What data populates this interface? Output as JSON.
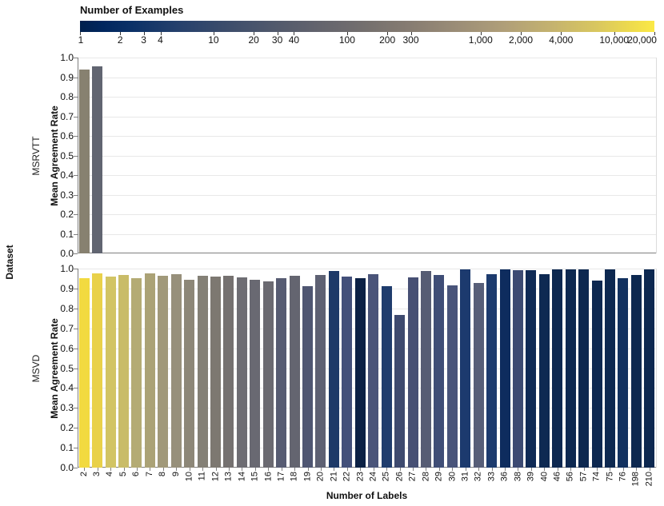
{
  "chart_data": {
    "type": "bar",
    "facet_row_label": "Dataset",
    "xlabel": "Number of Labels",
    "ylabel": "Mean Agreement Rate",
    "ylim": [
      0,
      1
    ],
    "grid": true,
    "y_tick_labels": [
      "1.0",
      "0.9",
      "0.8",
      "0.7",
      "0.6",
      "0.5",
      "0.4",
      "0.3",
      "0.2",
      "0.1",
      "0.0"
    ],
    "legend": {
      "title": "Number of Examples",
      "scale": "log",
      "domain": [
        1,
        20000
      ],
      "colormap": "cividis (dark navy to gray to yellow)",
      "ticks": [
        {
          "value": 1,
          "label": "1"
        },
        {
          "value": 2,
          "label": "2"
        },
        {
          "value": 3,
          "label": "3"
        },
        {
          "value": 4,
          "label": "4"
        },
        {
          "value": 10,
          "label": "10"
        },
        {
          "value": 20,
          "label": "20"
        },
        {
          "value": 30,
          "label": "30"
        },
        {
          "value": 40,
          "label": "40"
        },
        {
          "value": 100,
          "label": "100"
        },
        {
          "value": 200,
          "label": "200"
        },
        {
          "value": 300,
          "label": "300"
        },
        {
          "value": 1000,
          "label": "1,000"
        },
        {
          "value": 2000,
          "label": "2,000"
        },
        {
          "value": 4000,
          "label": "4,000"
        },
        {
          "value": 10000,
          "label": "10,000"
        },
        {
          "value": 20000,
          "label": "20,000"
        }
      ]
    },
    "categories": [
      "2",
      "3",
      "4",
      "5",
      "6",
      "7",
      "8",
      "9",
      "10",
      "11",
      "12",
      "13",
      "14",
      "15",
      "16",
      "17",
      "18",
      "19",
      "20",
      "21",
      "22",
      "23",
      "24",
      "25",
      "26",
      "27",
      "28",
      "29",
      "30",
      "31",
      "32",
      "33",
      "36",
      "38",
      "39",
      "40",
      "46",
      "56",
      "57",
      "74",
      "75",
      "76",
      "198",
      "210"
    ],
    "panels": [
      {
        "dataset": "MSRVTT",
        "bars": [
          {
            "label": "2",
            "value": 0.94,
            "color": "#878170"
          },
          {
            "label": "3",
            "value": 0.957,
            "color": "#616571"
          }
        ]
      },
      {
        "dataset": "MSVD",
        "bars": [
          {
            "label": "2",
            "value": 0.952,
            "color": "#f2da40"
          },
          {
            "label": "3",
            "value": 0.976,
            "color": "#e9d14a"
          },
          {
            "label": "4",
            "value": 0.958,
            "color": "#d2c464"
          },
          {
            "label": "5",
            "value": 0.966,
            "color": "#c9bc68"
          },
          {
            "label": "6",
            "value": 0.951,
            "color": "#b4ab74"
          },
          {
            "label": "7",
            "value": 0.976,
            "color": "#aba276"
          },
          {
            "label": "8",
            "value": 0.962,
            "color": "#a1997a"
          },
          {
            "label": "9",
            "value": 0.972,
            "color": "#97907b"
          },
          {
            "label": "10",
            "value": 0.945,
            "color": "#8d8778"
          },
          {
            "label": "11",
            "value": 0.963,
            "color": "#848076"
          },
          {
            "label": "12",
            "value": 0.96,
            "color": "#7d7871"
          },
          {
            "label": "13",
            "value": 0.963,
            "color": "#757170"
          },
          {
            "label": "14",
            "value": 0.955,
            "color": "#6e6d73"
          },
          {
            "label": "15",
            "value": 0.943,
            "color": "#696972"
          },
          {
            "label": "16",
            "value": 0.934,
            "color": "#6b6a71"
          },
          {
            "label": "17",
            "value": 0.953,
            "color": "#575c72"
          },
          {
            "label": "18",
            "value": 0.964,
            "color": "#646570"
          },
          {
            "label": "19",
            "value": 0.911,
            "color": "#4f5672"
          },
          {
            "label": "20",
            "value": 0.967,
            "color": "#5e6173"
          },
          {
            "label": "21",
            "value": 0.988,
            "color": "#1e3a68"
          },
          {
            "label": "22",
            "value": 0.961,
            "color": "#43507a"
          },
          {
            "label": "23",
            "value": 0.952,
            "color": "#0c2145"
          },
          {
            "label": "24",
            "value": 0.972,
            "color": "#4a5479"
          },
          {
            "label": "25",
            "value": 0.91,
            "color": "#1f3c6d"
          },
          {
            "label": "26",
            "value": 0.766,
            "color": "#3e4a6f"
          },
          {
            "label": "27",
            "value": 0.956,
            "color": "#475074"
          },
          {
            "label": "28",
            "value": 0.988,
            "color": "#565c74"
          },
          {
            "label": "29",
            "value": 0.967,
            "color": "#3f4d76"
          },
          {
            "label": "30",
            "value": 0.915,
            "color": "#49547a"
          },
          {
            "label": "31",
            "value": 0.996,
            "color": "#1c3a6e"
          },
          {
            "label": "32",
            "value": 0.927,
            "color": "#575e78"
          },
          {
            "label": "33",
            "value": 0.971,
            "color": "#1d3b6e"
          },
          {
            "label": "36",
            "value": 0.996,
            "color": "#0e2c5e"
          },
          {
            "label": "38",
            "value": 0.991,
            "color": "#3c4a72"
          },
          {
            "label": "39",
            "value": 0.993,
            "color": "#0f2a55"
          },
          {
            "label": "40",
            "value": 0.971,
            "color": "#0e2952"
          },
          {
            "label": "46",
            "value": 0.996,
            "color": "#0d2850"
          },
          {
            "label": "56",
            "value": 0.996,
            "color": "#0d2850"
          },
          {
            "label": "57",
            "value": 0.996,
            "color": "#0d2850"
          },
          {
            "label": "74",
            "value": 0.941,
            "color": "#0d2850"
          },
          {
            "label": "75",
            "value": 0.996,
            "color": "#0d2850"
          },
          {
            "label": "76",
            "value": 0.95,
            "color": "#12315f"
          },
          {
            "label": "198",
            "value": 0.966,
            "color": "#0d2850"
          },
          {
            "label": "210",
            "value": 0.996,
            "color": "#0d2850"
          }
        ]
      }
    ]
  }
}
